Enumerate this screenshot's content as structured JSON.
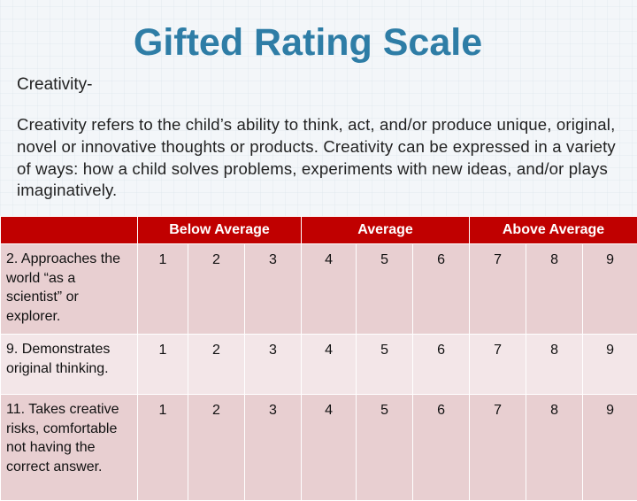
{
  "slide": {
    "title": "Gifted Rating Scale",
    "heading": "Creativity-",
    "paragraph": "Creativity refers to the child’s ability to think, act, and/or produce unique, original, novel or innovative thoughts or products. Creativity can be expressed in a variety of ways: how a child solves problems, experiments with new ideas, and/or plays imaginatively."
  },
  "table": {
    "headers": [
      "Below Average",
      "Average",
      "Above Average"
    ],
    "rows": [
      {
        "label": "2. Approaches the world “as a scientist” or explorer.",
        "scores": [
          "1",
          "2",
          "3",
          "4",
          "5",
          "6",
          "7",
          "8",
          "9"
        ]
      },
      {
        "label": "9. Demonstrates original thinking.",
        "scores": [
          "1",
          "2",
          "3",
          "4",
          "5",
          "6",
          "7",
          "8",
          "9"
        ]
      },
      {
        "label": "11. Takes creative risks, comfortable not having the correct answer.",
        "scores": [
          "1",
          "2",
          "3",
          "4",
          "5",
          "6",
          "7",
          "8",
          "9"
        ]
      }
    ]
  },
  "colors": {
    "title": "#2e7da6",
    "header_bg": "#c00000",
    "row_dark": "#e8cfd1",
    "row_light": "#f3e6e8"
  }
}
